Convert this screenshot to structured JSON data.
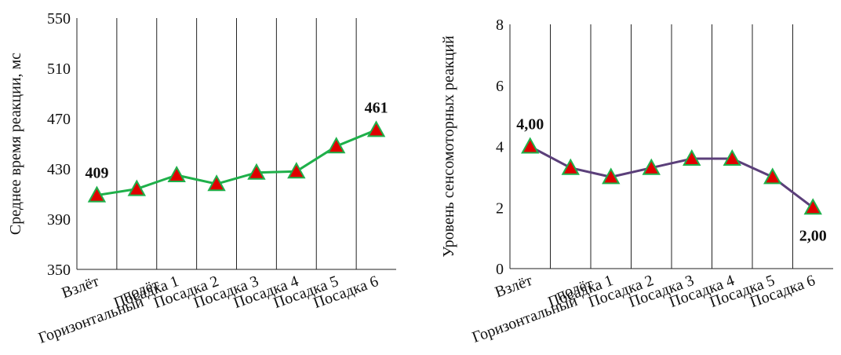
{
  "chart_data": [
    {
      "type": "line",
      "categories": [
        "Взлёт",
        "Горизонтальный полёт",
        "Посадка 1",
        "Посадка 2",
        "Посадка 3",
        "Посадка 4",
        "Посадка 5",
        "Посадка 6"
      ],
      "series": [
        {
          "values": [
            409,
            414,
            425,
            418,
            427,
            428,
            448,
            461
          ]
        }
      ],
      "data_labels": [
        {
          "index": 0,
          "text": "409"
        },
        {
          "index": 7,
          "text": "461"
        }
      ],
      "ylabel": "Среднее время реакции, мс",
      "xlabel": "",
      "ylim": [
        350,
        550
      ],
      "yticks": [
        350,
        390,
        430,
        470,
        510,
        550
      ],
      "line_color": "#1fb04a",
      "marker_fill": "#e00000",
      "marker_stroke": "#1fb04a",
      "grid": "vertical"
    },
    {
      "type": "line",
      "categories": [
        "Взлёт",
        "Горизонтальный полёт",
        "Посадка 1",
        "Посадка 2",
        "Посадка 3",
        "Посадка 4",
        "Посадка 5",
        "Посадка 6"
      ],
      "series": [
        {
          "values": [
            4.0,
            3.3,
            3.0,
            3.3,
            3.6,
            3.6,
            3.0,
            2.0
          ]
        }
      ],
      "data_labels": [
        {
          "index": 0,
          "text": "4,00"
        },
        {
          "index": 7,
          "text": "2,00"
        }
      ],
      "ylabel": "Уровень сенсомоторных реакций",
      "xlabel": "",
      "ylim": [
        0,
        8
      ],
      "yticks": [
        0,
        2,
        4,
        6,
        8
      ],
      "line_color": "#5b3f7a",
      "marker_fill": "#e00000",
      "marker_stroke": "#1fb04a",
      "grid": "vertical"
    }
  ]
}
